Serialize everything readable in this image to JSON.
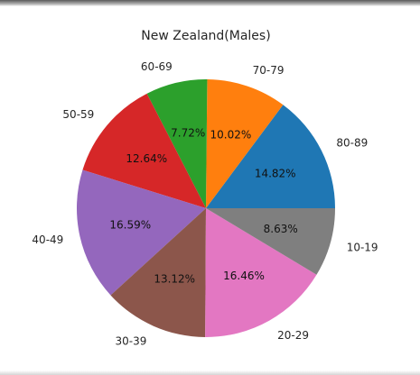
{
  "chart_data": {
    "type": "pie",
    "title": "New Zealand(Males)",
    "categories": [
      "80-89",
      "70-79",
      "60-69",
      "50-59",
      "40-49",
      "30-39",
      "20-29",
      "10-19"
    ],
    "values": [
      14.82,
      10.02,
      7.72,
      12.64,
      16.59,
      13.12,
      16.46,
      8.63
    ],
    "percent_labels": [
      "14.82%",
      "10.02%",
      "7.72%",
      "12.64%",
      "16.59%",
      "13.12%",
      "16.46%",
      "8.63%"
    ],
    "colors": [
      "#1f77b4",
      "#ff7f0e",
      "#2ca02c",
      "#d62728",
      "#9467bd",
      "#8c564b",
      "#e377c2",
      "#7f7f7f"
    ],
    "start_angle_deg": 0,
    "direction": "counterclockwise",
    "legend": "none"
  }
}
